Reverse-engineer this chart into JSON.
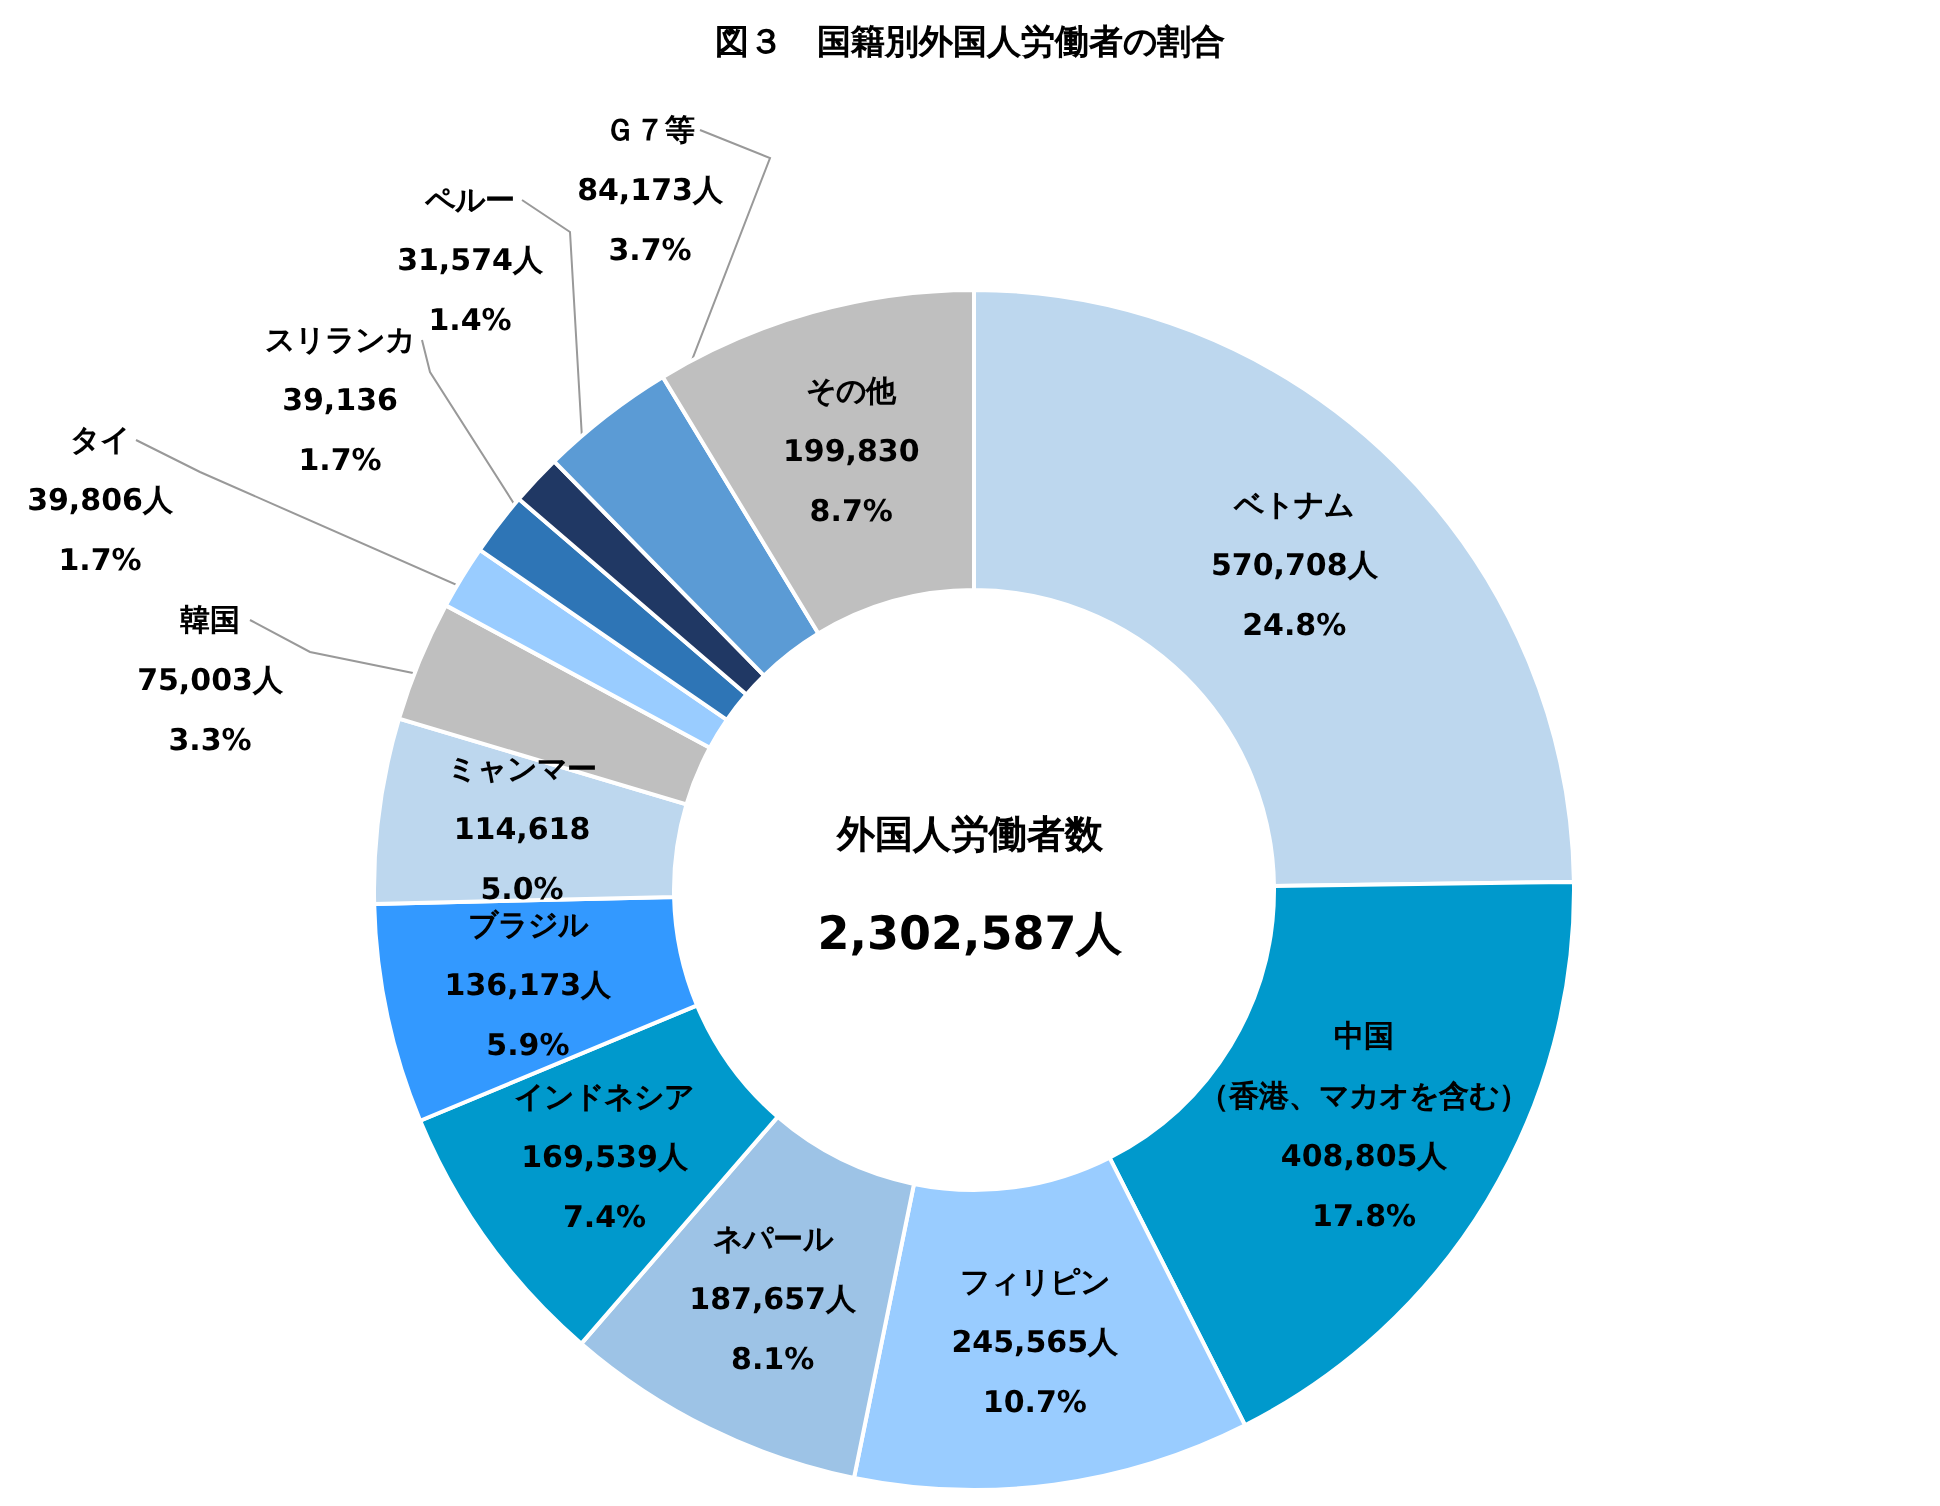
{
  "chart_data": {
    "type": "donut",
    "title": "図３　国籍別外国人労働者の割合",
    "categories": [
      "ベトナム",
      "中国（香港、マカオを含む）",
      "フィリピン",
      "ネパール",
      "インドネシア",
      "ブラジル",
      "ミャンマー",
      "韓国",
      "タイ",
      "スリランカ",
      "ペルー",
      "Ｇ７等",
      "その他"
    ],
    "values": [
      570708,
      408805,
      245565,
      187657,
      169539,
      136173,
      114618,
      75003,
      39806,
      39136,
      31574,
      84173,
      199830
    ],
    "value_labels": [
      "570,708人\n24.8%",
      "408,805人\n17.8%",
      "245,565人\n10.7%",
      "187,657人\n8.1%",
      "169,539人\n7.4%",
      "136,173人\n5.9%",
      "114,618\n5.0%",
      "75,003人\n3.3%",
      "39,806人\n1.7%",
      "39,136\n1.7%",
      "31,574人\n1.4%",
      "84,173人\n3.7%",
      "199,830\n8.7%"
    ],
    "colors": [
      "#bdd7ee",
      "#0099cc",
      "#99ccff",
      "#9dc3e6",
      "#0099cc",
      "#3399ff",
      "#bdd7ee",
      "#bfbfbf",
      "#99ccff",
      "#2e75b6",
      "#203864",
      "#5b9bd5",
      "#bfbfbf"
    ],
    "annotations": [
      "外国人労働者数",
      "2,302,587人"
    ],
    "legend": false
  }
}
